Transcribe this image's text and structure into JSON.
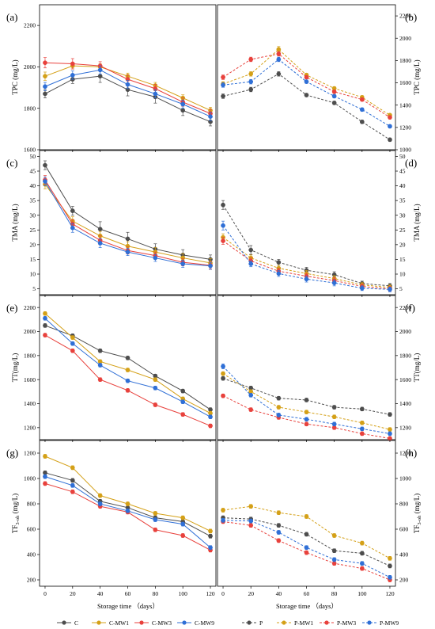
{
  "colors": {
    "C": "#4d4d4d",
    "MW1": "#d4a017",
    "MW3": "#e8413c",
    "MW9": "#2f6fd6"
  },
  "xlabel": "Storage time （days）",
  "x_ticks": [
    "0",
    "20",
    "40",
    "60",
    "80",
    "100",
    "120"
  ],
  "legend_left": [
    {
      "key": "C",
      "label": "C"
    },
    {
      "key": "MW1",
      "label": "C-MW1"
    },
    {
      "key": "MW3",
      "label": "C-MW3"
    },
    {
      "key": "MW9",
      "label": "C-MW9"
    }
  ],
  "legend_right": [
    {
      "key": "C",
      "label": "P"
    },
    {
      "key": "MW1",
      "label": "P-MW1"
    },
    {
      "key": "MW3",
      "label": "P-MW3"
    },
    {
      "key": "MW9",
      "label": "P-MW9"
    }
  ],
  "chart_data": [
    {
      "type": "line",
      "panel_label": "(a)",
      "ylabel": "TPC (mg/L)",
      "x": [
        0,
        20,
        40,
        60,
        80,
        100,
        120
      ],
      "ylim": [
        1600,
        2300
      ],
      "yticks": [
        "1600",
        "1800",
        "2000",
        "2200"
      ],
      "series": [
        {
          "name": "C",
          "color_key": "C",
          "values": [
            1870,
            1940,
            1955,
            1890,
            1855,
            1790,
            1735
          ],
          "errors": [
            20,
            20,
            30,
            30,
            30,
            25,
            20
          ]
        },
        {
          "name": "C-MW1",
          "color_key": "MW1",
          "values": [
            1955,
            2005,
            2000,
            1955,
            1910,
            1850,
            1790
          ],
          "errors": [
            20,
            15,
            15,
            15,
            15,
            15,
            15
          ]
        },
        {
          "name": "C-MW3",
          "color_key": "MW3",
          "values": [
            2020,
            2015,
            2005,
            1940,
            1895,
            1830,
            1775
          ],
          "errors": [
            25,
            25,
            20,
            20,
            20,
            20,
            20
          ]
        },
        {
          "name": "C-MW9",
          "color_key": "MW9",
          "values": [
            1905,
            1960,
            1985,
            1915,
            1870,
            1820,
            1760
          ],
          "errors": [
            20,
            20,
            20,
            20,
            20,
            20,
            20
          ]
        }
      ]
    },
    {
      "type": "line",
      "panel_label": "(b)",
      "ylabel": "TPC (mg/L)",
      "x": [
        0,
        20,
        40,
        60,
        80,
        100,
        120
      ],
      "ylim": [
        1000,
        2300
      ],
      "yticks": [
        "1000",
        "1200",
        "1400",
        "1600",
        "1800",
        "2000",
        "2200"
      ],
      "series": [
        {
          "name": "P",
          "color_key": "C",
          "values": [
            1480,
            1540,
            1680,
            1490,
            1420,
            1250,
            1090
          ],
          "errors": [
            20,
            20,
            20,
            15,
            15,
            15,
            15
          ]
        },
        {
          "name": "P-MW1",
          "color_key": "MW1",
          "values": [
            1590,
            1680,
            1900,
            1670,
            1550,
            1470,
            1310
          ],
          "errors": [
            20,
            20,
            25,
            15,
            15,
            15,
            15
          ]
        },
        {
          "name": "P-MW3",
          "color_key": "MW3",
          "values": [
            1650,
            1810,
            1860,
            1650,
            1520,
            1450,
            1290
          ],
          "errors": [
            20,
            20,
            20,
            15,
            15,
            15,
            15
          ]
        },
        {
          "name": "P-MW9",
          "color_key": "MW9",
          "values": [
            1580,
            1610,
            1810,
            1610,
            1480,
            1360,
            1210
          ],
          "errors": [
            20,
            20,
            20,
            15,
            15,
            15,
            15
          ]
        }
      ]
    },
    {
      "type": "line",
      "panel_label": "(c)",
      "ylabel": "TMA (mg/L)",
      "x": [
        0,
        20,
        40,
        60,
        80,
        100,
        120
      ],
      "ylim": [
        3,
        52
      ],
      "yticks": [
        "5",
        "10",
        "15",
        "20",
        "25",
        "30",
        "35",
        "40",
        "45",
        "50"
      ],
      "series": [
        {
          "name": "C",
          "color_key": "C",
          "values": [
            47,
            31.5,
            25.3,
            22,
            18.5,
            16.5,
            15
          ],
          "errors": [
            1.5,
            1.5,
            2.5,
            2.2,
            1.8,
            1.8,
            1.5
          ]
        },
        {
          "name": "C-MW1",
          "color_key": "MW1",
          "values": [
            40.5,
            28,
            23,
            19.5,
            17.5,
            15.5,
            13.8
          ],
          "errors": [
            1.5,
            1.5,
            1.5,
            1.5,
            1.5,
            1.5,
            1.5
          ]
        },
        {
          "name": "C-MW3",
          "color_key": "MW3",
          "values": [
            42,
            27,
            21.5,
            18,
            16.3,
            14,
            13
          ],
          "errors": [
            1.5,
            1.5,
            1.5,
            1.2,
            1.2,
            1.2,
            1.2
          ]
        },
        {
          "name": "C-MW9",
          "color_key": "MW9",
          "values": [
            41.5,
            25.7,
            20.5,
            17.5,
            15.5,
            13.5,
            12.8
          ],
          "errors": [
            1.5,
            1.5,
            1.5,
            1.2,
            1.2,
            1.2,
            1.2
          ]
        }
      ]
    },
    {
      "type": "line",
      "panel_label": "(d)",
      "ylabel": "TMA (mg/L)",
      "x": [
        0,
        20,
        40,
        60,
        80,
        100,
        120
      ],
      "ylim": [
        3,
        52
      ],
      "yticks": [
        "5",
        "10",
        "15",
        "20",
        "25",
        "30",
        "35",
        "40",
        "45",
        "50"
      ],
      "series": [
        {
          "name": "P",
          "color_key": "C",
          "values": [
            33.5,
            18.2,
            14,
            11.3,
            9.8,
            6.8,
            6
          ],
          "errors": [
            1.5,
            1.5,
            1,
            1,
            1,
            0.8,
            0.8
          ]
        },
        {
          "name": "P-MW1",
          "color_key": "MW1",
          "values": [
            22.5,
            15.5,
            12,
            10.2,
            8.5,
            6.3,
            5.5
          ],
          "errors": [
            1.2,
            1,
            1,
            1,
            1,
            0.8,
            0.8
          ]
        },
        {
          "name": "P-MW3",
          "color_key": "MW3",
          "values": [
            21.3,
            14.5,
            11,
            9.3,
            7.8,
            5.8,
            5
          ],
          "errors": [
            1.2,
            1,
            1,
            1,
            1,
            0.8,
            0.8
          ]
        },
        {
          "name": "P-MW9",
          "color_key": "MW9",
          "values": [
            26.5,
            13.5,
            10.2,
            8.3,
            7,
            5.2,
            4.8
          ],
          "errors": [
            1.5,
            1,
            1,
            1,
            1,
            0.8,
            0.8
          ]
        }
      ]
    },
    {
      "type": "line",
      "panel_label": "(e)",
      "ylabel": "TT(mg/L)",
      "x": [
        0,
        20,
        40,
        60,
        80,
        100,
        120
      ],
      "ylim": [
        1100,
        2300
      ],
      "yticks": [
        "1200",
        "1400",
        "1600",
        "1800",
        "2000",
        "2200"
      ],
      "series": [
        {
          "name": "C",
          "color_key": "C",
          "values": [
            2050,
            1965,
            1840,
            1780,
            1630,
            1505,
            1350
          ],
          "errors": [
            15,
            15,
            15,
            15,
            15,
            15,
            15
          ]
        },
        {
          "name": "C-MW1",
          "color_key": "MW1",
          "values": [
            2150,
            1950,
            1750,
            1680,
            1600,
            1440,
            1320
          ],
          "errors": [
            15,
            15,
            15,
            15,
            15,
            15,
            15
          ]
        },
        {
          "name": "C-MW3",
          "color_key": "MW3",
          "values": [
            1970,
            1840,
            1600,
            1510,
            1390,
            1310,
            1215
          ],
          "errors": [
            15,
            15,
            15,
            15,
            15,
            15,
            15
          ]
        },
        {
          "name": "C-MW9",
          "color_key": "MW9",
          "values": [
            2110,
            1900,
            1720,
            1590,
            1530,
            1415,
            1290
          ],
          "errors": [
            15,
            15,
            15,
            15,
            15,
            15,
            15
          ]
        }
      ]
    },
    {
      "type": "line",
      "panel_label": "(f)",
      "ylabel": "TT(mg/L)",
      "x": [
        0,
        20,
        40,
        60,
        80,
        100,
        120
      ],
      "ylim": [
        1100,
        2300
      ],
      "yticks": [
        "1200",
        "1400",
        "1600",
        "1800",
        "2000",
        "2200"
      ],
      "series": [
        {
          "name": "P",
          "color_key": "C",
          "values": [
            1610,
            1530,
            1445,
            1430,
            1370,
            1355,
            1310
          ],
          "errors": [
            15,
            15,
            15,
            15,
            15,
            15,
            15
          ]
        },
        {
          "name": "P-MW1",
          "color_key": "MW1",
          "values": [
            1650,
            1500,
            1370,
            1330,
            1290,
            1240,
            1185
          ],
          "errors": [
            15,
            15,
            15,
            15,
            15,
            15,
            15
          ]
        },
        {
          "name": "P-MW3",
          "color_key": "MW3",
          "values": [
            1465,
            1350,
            1285,
            1230,
            1200,
            1150,
            1110
          ],
          "errors": [
            15,
            15,
            15,
            15,
            15,
            15,
            15
          ]
        },
        {
          "name": "P-MW9",
          "color_key": "MW9",
          "values": [
            1710,
            1470,
            1305,
            1270,
            1230,
            1190,
            1150
          ],
          "errors": [
            20,
            15,
            15,
            15,
            15,
            15,
            15
          ]
        }
      ]
    },
    {
      "type": "line",
      "panel_label": "(g)",
      "ylabel": "TF",
      "ylabel_sub": "3-oh",
      "ylabel_suffix": " (mg/L)",
      "x": [
        0,
        20,
        40,
        60,
        80,
        100,
        120
      ],
      "ylim": [
        150,
        1300
      ],
      "yticks": [
        "200",
        "400",
        "600",
        "800",
        "1000",
        "1200"
      ],
      "series": [
        {
          "name": "C",
          "color_key": "C",
          "values": [
            1045,
            985,
            820,
            770,
            690,
            660,
            545
          ],
          "errors": [
            15,
            15,
            15,
            15,
            15,
            15,
            15
          ]
        },
        {
          "name": "C-MW1",
          "color_key": "MW1",
          "values": [
            1175,
            1085,
            865,
            800,
            725,
            690,
            585
          ],
          "errors": [
            15,
            15,
            15,
            15,
            15,
            15,
            15
          ]
        },
        {
          "name": "C-MW3",
          "color_key": "MW3",
          "values": [
            960,
            895,
            780,
            735,
            595,
            550,
            435
          ],
          "errors": [
            15,
            15,
            15,
            15,
            15,
            15,
            15
          ]
        },
        {
          "name": "C-MW9",
          "color_key": "MW9",
          "values": [
            1015,
            945,
            800,
            745,
            675,
            640,
            455
          ],
          "errors": [
            15,
            15,
            15,
            15,
            15,
            15,
            15
          ]
        }
      ]
    },
    {
      "type": "line",
      "panel_label": "(h)",
      "ylabel": "TF",
      "ylabel_sub": "3-oh",
      "ylabel_suffix": " (mg/L)",
      "x": [
        0,
        20,
        40,
        60,
        80,
        100,
        120
      ],
      "ylim": [
        150,
        1300
      ],
      "yticks": [
        "200",
        "400",
        "600",
        "800",
        "1000",
        "1200"
      ],
      "series": [
        {
          "name": "P",
          "color_key": "C",
          "values": [
            690,
            680,
            630,
            560,
            430,
            410,
            310
          ],
          "errors": [
            15,
            15,
            15,
            15,
            15,
            15,
            15
          ]
        },
        {
          "name": "P-MW1",
          "color_key": "MW1",
          "values": [
            750,
            780,
            730,
            700,
            550,
            490,
            370
          ],
          "errors": [
            15,
            15,
            15,
            15,
            15,
            15,
            15
          ]
        },
        {
          "name": "P-MW3",
          "color_key": "MW3",
          "values": [
            660,
            630,
            510,
            415,
            330,
            290,
            200
          ],
          "errors": [
            15,
            15,
            15,
            15,
            15,
            15,
            15
          ]
        },
        {
          "name": "P-MW9",
          "color_key": "MW9",
          "values": [
            670,
            665,
            575,
            455,
            360,
            330,
            220
          ],
          "errors": [
            15,
            15,
            15,
            15,
            15,
            15,
            15
          ]
        }
      ]
    }
  ]
}
